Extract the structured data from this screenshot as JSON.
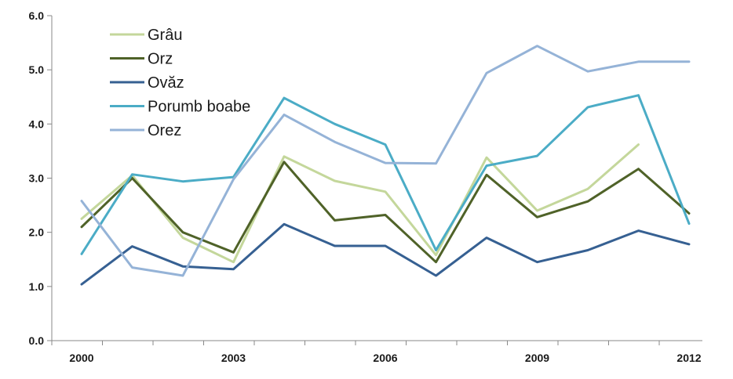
{
  "chart_data": {
    "type": "line",
    "x": [
      2000,
      2001,
      2002,
      2003,
      2004,
      2005,
      2006,
      2007,
      2008,
      2009,
      2010,
      2011,
      2012
    ],
    "xtick_labels": [
      "2000",
      "2003",
      "2006",
      "2009",
      "2012"
    ],
    "ytick_labels": [
      "0.0",
      "1.0",
      "2.0",
      "3.0",
      "4.0",
      "5.0",
      "6.0"
    ],
    "ylim": [
      0,
      6
    ],
    "grid": false,
    "legend_position": "top-left",
    "series": [
      {
        "name": "Grâu",
        "color": "#c4d79b",
        "values": [
          2.25,
          3.05,
          1.9,
          1.45,
          3.4,
          2.95,
          2.75,
          1.58,
          3.38,
          2.4,
          2.8,
          3.62,
          null
        ]
      },
      {
        "name": "Orz",
        "color": "#4f6228",
        "values": [
          2.1,
          3.0,
          2.0,
          1.63,
          3.3,
          2.22,
          2.32,
          1.45,
          3.06,
          2.28,
          2.57,
          3.17,
          2.35
        ]
      },
      {
        "name": "Ovăz",
        "color": "#366092",
        "values": [
          1.04,
          1.74,
          1.37,
          1.32,
          2.15,
          1.75,
          1.75,
          1.2,
          1.9,
          1.45,
          1.67,
          2.03,
          1.78
        ]
      },
      {
        "name": "Porumb boabe",
        "color": "#4bacc6",
        "values": [
          1.6,
          3.07,
          2.94,
          3.02,
          4.48,
          4.0,
          3.62,
          1.67,
          3.23,
          3.41,
          4.31,
          4.53,
          2.16
        ]
      },
      {
        "name": "Orez",
        "color": "#95b3d7",
        "values": [
          2.58,
          1.35,
          1.2,
          2.98,
          4.17,
          3.67,
          3.28,
          3.27,
          4.94,
          5.44,
          4.97,
          5.15,
          5.15
        ]
      }
    ]
  }
}
